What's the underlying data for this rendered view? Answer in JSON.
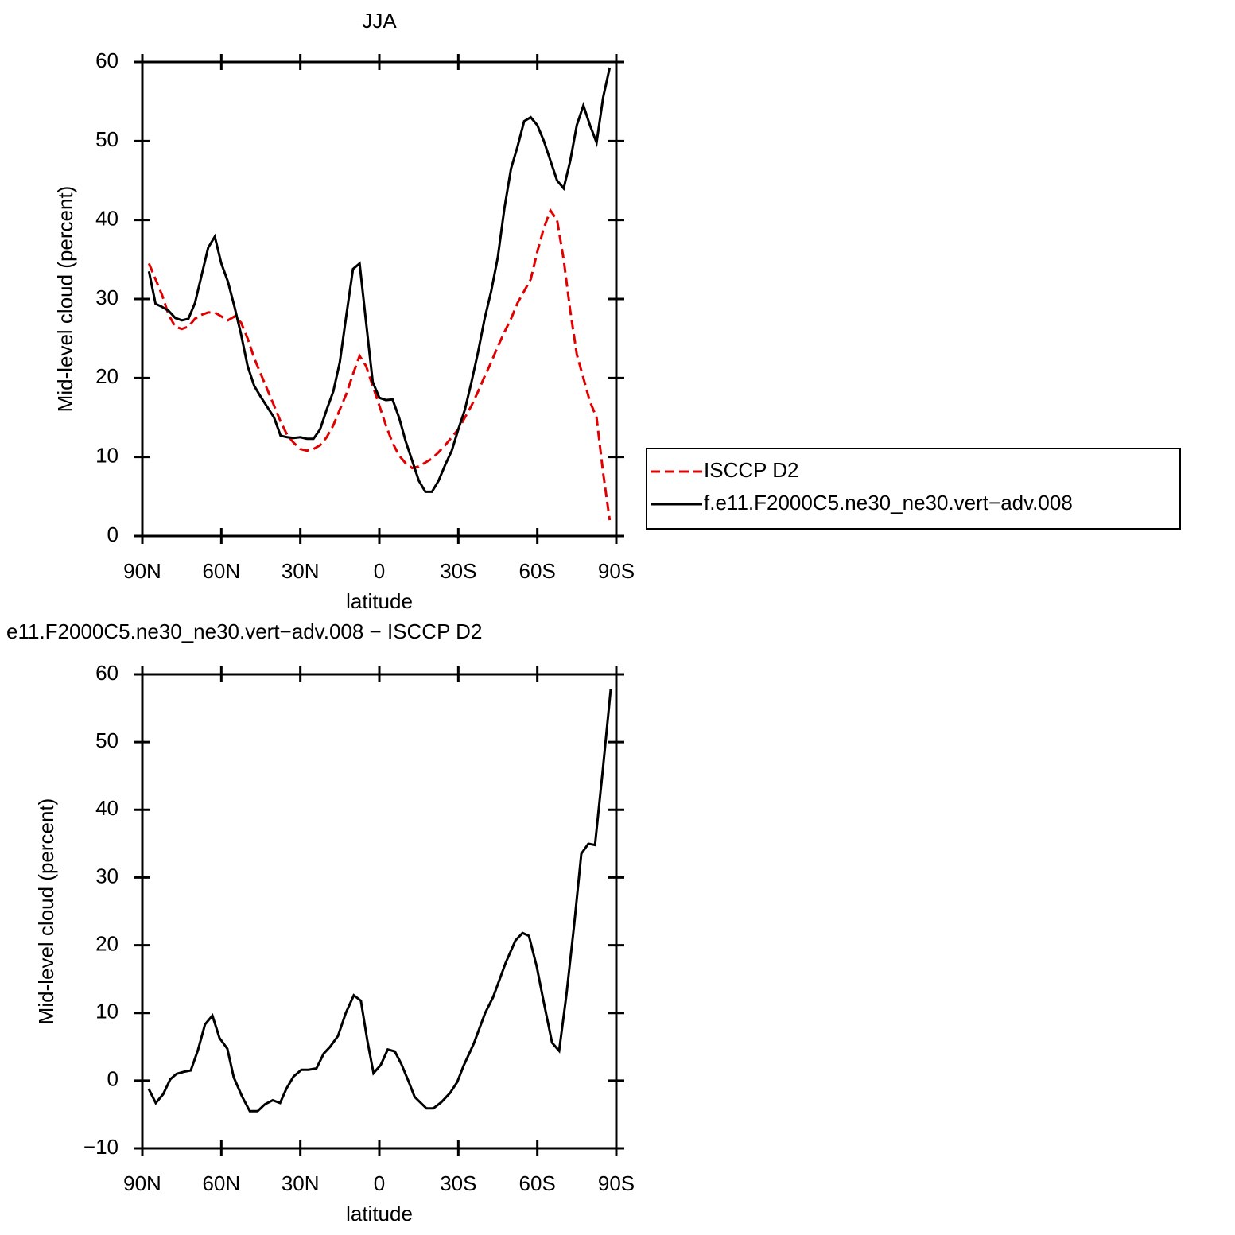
{
  "chart_data": [
    {
      "type": "line",
      "title": "JJA",
      "xlabel": "latitude",
      "ylabel": "Mid-level cloud (percent)",
      "x": [
        87.5,
        85,
        82.5,
        80,
        77.5,
        75,
        72.5,
        70,
        67.5,
        65,
        62.5,
        60,
        57.5,
        55,
        52.5,
        50,
        47.5,
        45,
        42.5,
        40,
        37.5,
        35,
        32.5,
        30,
        27.5,
        25,
        22.5,
        20,
        17.5,
        15,
        12.5,
        10,
        7.5,
        5,
        2.5,
        0,
        -2.5,
        -5,
        -7.5,
        -10,
        -12.5,
        -15,
        -17.5,
        -20,
        -22.5,
        -25,
        -27.5,
        -30,
        -32.5,
        -35,
        -37.5,
        -40,
        -42.5,
        -45,
        -47.5,
        -50,
        -52.5,
        -55,
        -57.5,
        -60,
        -62.5,
        -65,
        -67.5,
        -70,
        -72.5,
        -75,
        -77.5,
        -80,
        -82.5,
        -85,
        -87.5
      ],
      "series": [
        {
          "name": "ISCCP D2",
          "color": "#e00000",
          "linestyle": "dashed",
          "values": [
            34.5,
            32.5,
            30.5,
            28,
            26.5,
            26.2,
            26.5,
            27.5,
            28,
            28.3,
            28.3,
            27.8,
            27.3,
            27.8,
            27,
            25,
            22.5,
            20.5,
            18.5,
            16.5,
            14.5,
            12.8,
            11.8,
            11,
            10.8,
            11,
            11.5,
            12.5,
            14,
            16,
            18,
            20.5,
            22.8,
            21.5,
            19,
            16.5,
            14,
            11.8,
            10.2,
            9.2,
            8.6,
            8.8,
            9.3,
            9.8,
            10.6,
            11.5,
            12.5,
            13.5,
            15,
            16.5,
            18.3,
            20.2,
            22,
            24,
            25.8,
            27.5,
            29.5,
            31,
            32.5,
            36,
            39,
            41.2,
            40,
            35,
            28.5,
            23,
            20,
            17,
            15,
            8,
            2
          ]
        },
        {
          "name": "f.e11.F2000C5.ne30_ne30.vert−adv.008",
          "color": "#000000",
          "linestyle": "solid",
          "values": [
            33.5,
            29.4,
            29,
            28.5,
            27.6,
            27.3,
            27.5,
            29.5,
            33,
            36.5,
            37.9,
            34.5,
            32.2,
            29,
            25.5,
            21.5,
            19,
            17.6,
            16.3,
            15,
            12.7,
            12.5,
            12.4,
            12.5,
            12.3,
            12.3,
            13.5,
            16,
            18.3,
            22,
            28,
            33.8,
            34.5,
            27,
            19.5,
            17.5,
            17.2,
            17.3,
            15,
            12,
            9.5,
            7,
            5.6,
            5.6,
            7,
            9,
            10.8,
            13.5,
            16,
            19.5,
            23.3,
            27.5,
            31,
            35.3,
            41.5,
            46.5,
            49.3,
            52.5,
            53,
            52,
            50,
            47.5,
            45,
            44,
            47.5,
            52,
            54.5,
            52,
            49.8,
            55.5,
            59.3
          ]
        }
      ],
      "xlim": [
        90,
        -90
      ],
      "xticks": [
        {
          "value": 90,
          "label": "90N"
        },
        {
          "value": 60,
          "label": "60N"
        },
        {
          "value": 30,
          "label": "30N"
        },
        0,
        {
          "value": -30,
          "label": "30S"
        },
        {
          "value": -60,
          "label": "60S"
        },
        {
          "value": -90,
          "label": "90S"
        }
      ],
      "ylim": [
        0,
        60
      ],
      "yticks": [
        0,
        10,
        20,
        30,
        40,
        50,
        60
      ],
      "legend": "right"
    },
    {
      "type": "line",
      "title": "e11.F2000C5.ne30_ne30.vert−adv.008 − ISCCP D2",
      "xlabel": "latitude",
      "ylabel": "Mid-level cloud (percent)",
      "x": [
        87.6,
        84.9,
        82.1,
        79.4,
        77.0,
        74.3,
        71.6,
        68.9,
        66.2,
        63.4,
        60.7,
        57.7,
        55.3,
        52.2,
        49.2,
        46.2,
        43.5,
        40.5,
        37.7,
        35.3,
        32.6,
        29.6,
        26.9,
        23.9,
        21.1,
        18.7,
        15.7,
        12.7,
        9.7,
        7.0,
        4.6,
        2.2,
        -0.5,
        -3.2,
        -5.9,
        -8.3,
        -11.0,
        -13.4,
        -17.9,
        -20.5,
        -23.5,
        -26.9,
        -29.6,
        -32.0,
        -35.9,
        -40.2,
        -43.2,
        -48.0,
        -51.7,
        -54.4,
        -56.8,
        -59.8,
        -62.5,
        -65.6,
        -68.3,
        -71.0,
        -74.0,
        -76.7,
        -79.4,
        -81.9,
        -84.9,
        -87.9
      ],
      "series": [
        {
          "color": "#000000",
          "linestyle": "solid",
          "values": [
            -1.2,
            -3.3,
            -2,
            0.2,
            1,
            1.3,
            1.5,
            4.5,
            8.3,
            9.6,
            6.3,
            4.7,
            0.5,
            -2.3,
            -4.5,
            -4.5,
            -3.5,
            -2.9,
            -3.3,
            -1.2,
            0.6,
            1.6,
            1.6,
            1.8,
            4,
            5,
            6.6,
            10,
            12.6,
            11.8,
            6,
            1.1,
            2.3,
            4.6,
            4.3,
            2.5,
            0,
            -2.4,
            -4.1,
            -4.1,
            -3.2,
            -1.8,
            -0.2,
            2.2,
            5.5,
            10,
            12.3,
            17.4,
            20.7,
            21.8,
            21.4,
            16.8,
            11.5,
            5.6,
            4.4,
            12.5,
            23,
            33.5,
            35,
            34.8,
            46,
            57.8
          ]
        }
      ],
      "xlim": [
        90,
        -90
      ],
      "xticks": [
        {
          "value": 90,
          "label": "90N"
        },
        {
          "value": 60,
          "label": "60N"
        },
        {
          "value": 30,
          "label": "30N"
        },
        0,
        {
          "value": -30,
          "label": "30S"
        },
        {
          "value": -60,
          "label": "60S"
        },
        {
          "value": -90,
          "label": "90S"
        }
      ],
      "ylim": [
        -10,
        60
      ],
      "yticks": [
        {
          "value": -10,
          "label": "−10"
        },
        0,
        10,
        20,
        30,
        40,
        50,
        60
      ]
    }
  ]
}
